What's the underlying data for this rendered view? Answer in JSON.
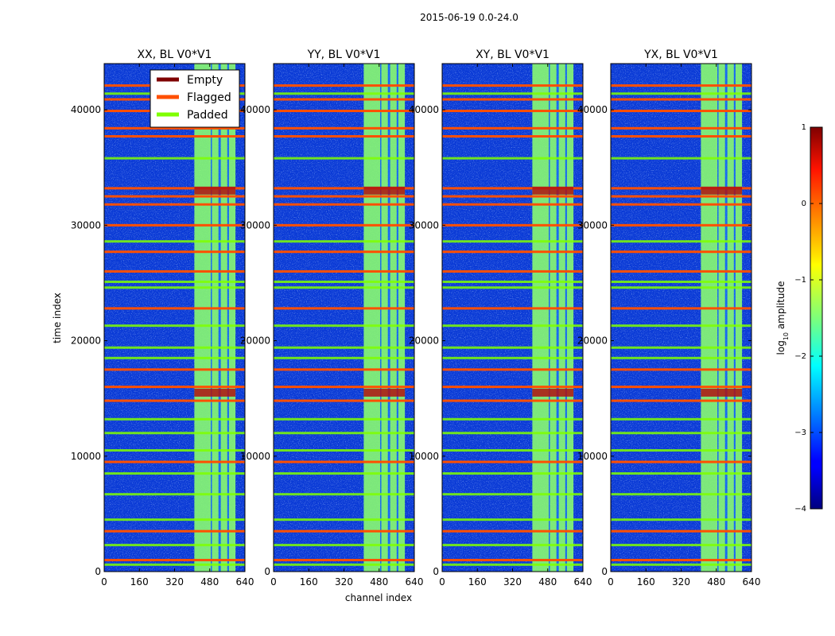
{
  "suptitle": "2015-06-19 0.0-24.0",
  "chart_data": {
    "type": "heatmap",
    "colormap": "jet",
    "panels": [
      {
        "title": "XX, BL V0*V1"
      },
      {
        "title": "YY, BL V0*V1"
      },
      {
        "title": "XY, BL V0*V1"
      },
      {
        "title": "YX, BL V0*V1"
      }
    ],
    "xlabel": "channel index",
    "ylabel": "time index",
    "xlim": [
      0,
      640
    ],
    "ylim": [
      0,
      44000
    ],
    "xticks": [
      0,
      160,
      320,
      480,
      640
    ],
    "yticks": [
      0,
      10000,
      20000,
      30000,
      40000
    ],
    "colorbar": {
      "label_prefix": "log",
      "label_sub": "10",
      "label_suffix": " amplitude",
      "min": -4,
      "max": 1,
      "ticks": [
        "1",
        "0",
        "−1",
        "−2",
        "−3",
        "−4"
      ]
    },
    "legend": [
      {
        "label": "Empty",
        "color": "#7f0000"
      },
      {
        "label": "Flagged",
        "color": "#ff4f00"
      },
      {
        "label": "Padded",
        "color": "#7fff00"
      }
    ],
    "bright_channel_bands": [
      [
        410,
        485
      ],
      [
        490,
        520
      ],
      [
        530,
        560
      ],
      [
        567,
        597
      ]
    ],
    "flagged_rows": [
      1000,
      3500,
      9500,
      14800,
      16000,
      17500,
      22800,
      26000,
      27700,
      30000,
      31800,
      32500,
      33200,
      37700,
      38400,
      39900,
      40900,
      42100
    ],
    "padded_rows": [
      600,
      2300,
      4500,
      6700,
      8500,
      10500,
      12000,
      13200,
      18500,
      19400,
      21300,
      24600,
      25100,
      28600,
      35800,
      41400
    ],
    "empty_rows": [
      15500,
      33000
    ]
  }
}
